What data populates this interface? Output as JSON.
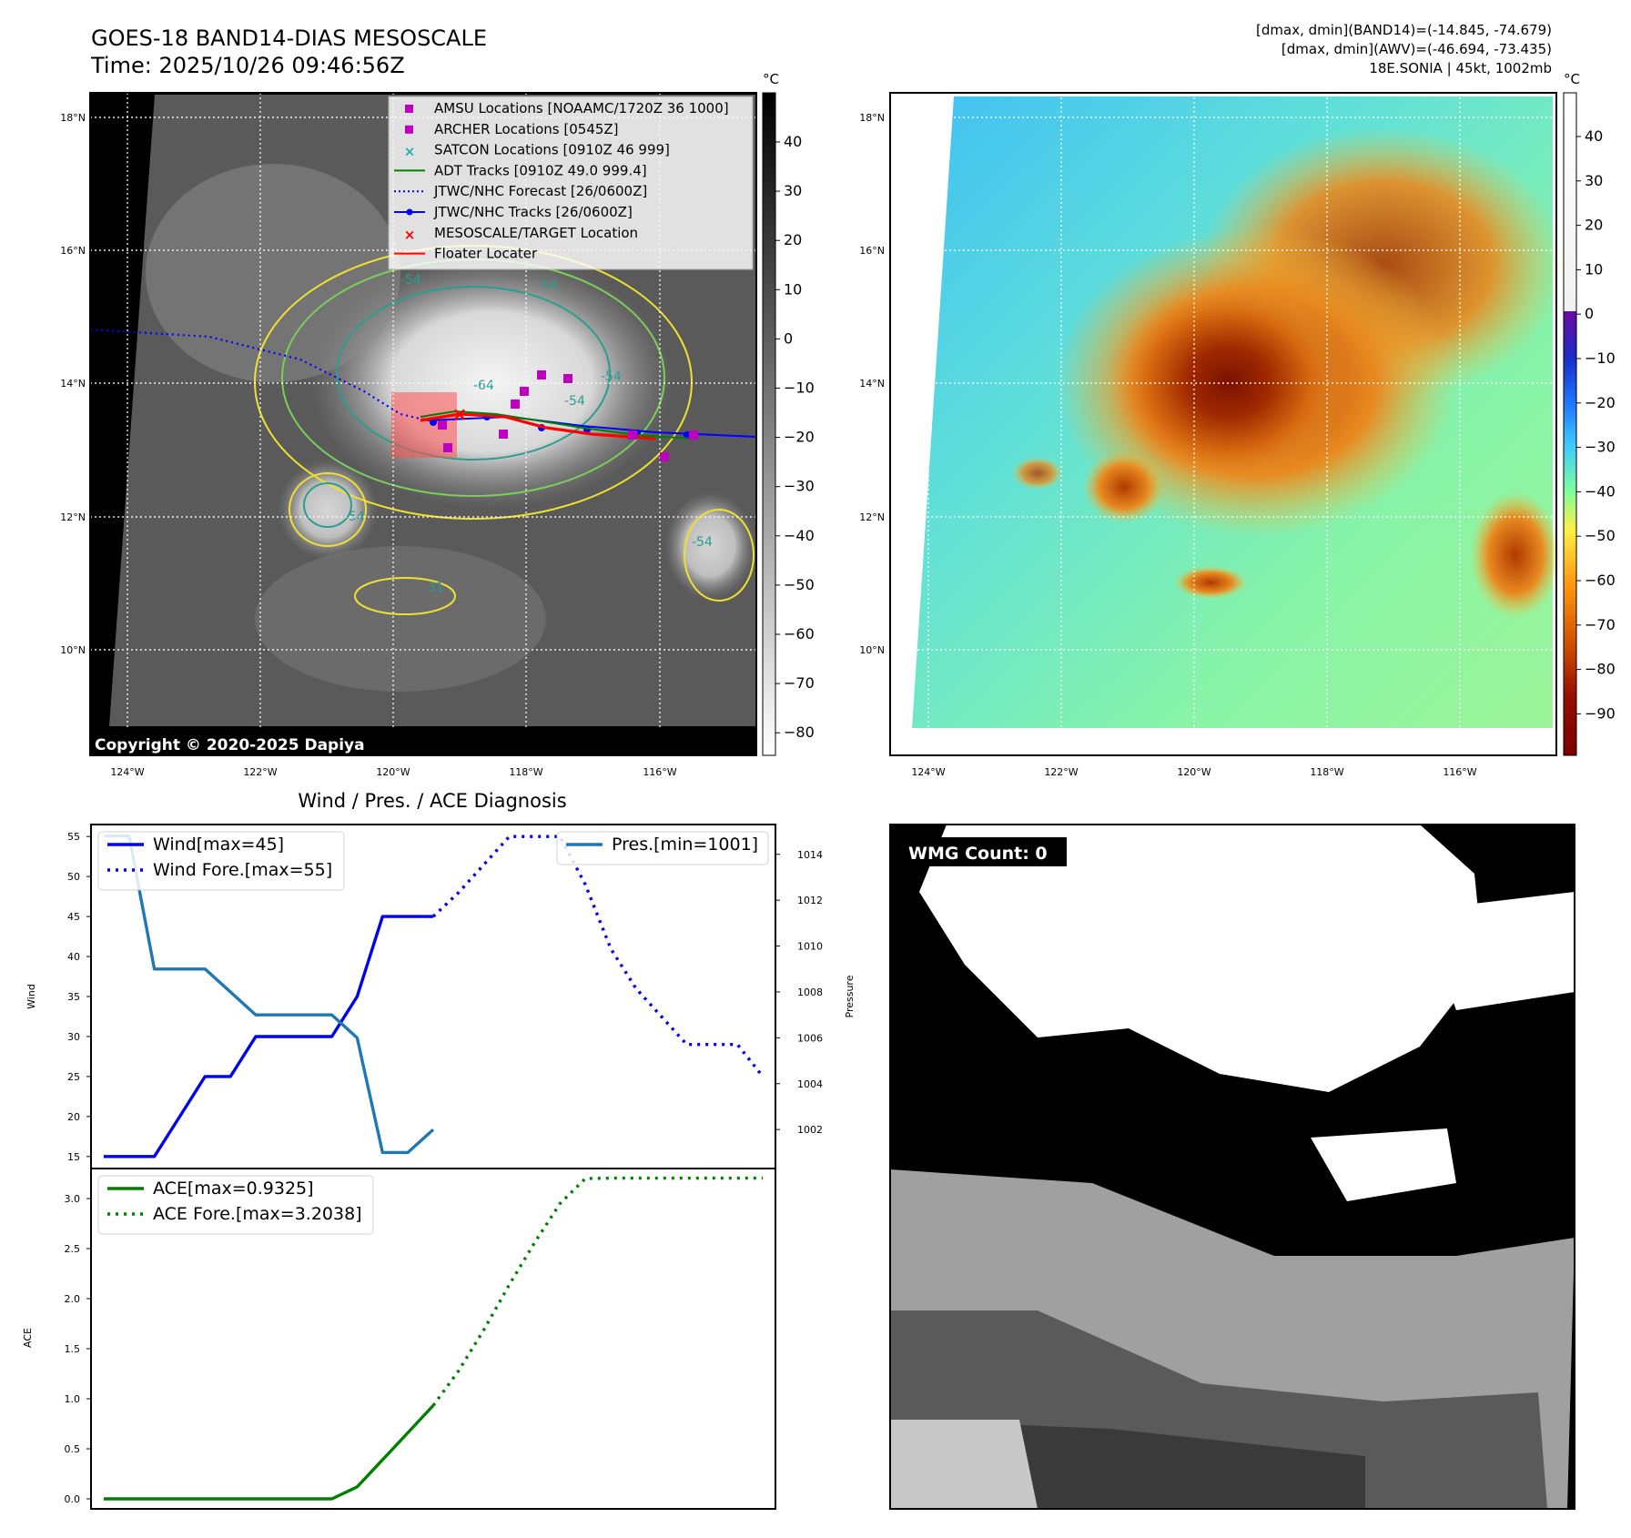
{
  "header": {
    "title_line1": "GOES-18 BAND14-DIAS MESOSCALE",
    "title_line2": "Time: 2025/10/26 09:46:56Z",
    "info_line1": "[dmax, dmin](BAND14)=(-14.845, -74.679)",
    "info_line2": "[dmax, dmin](AWV)=(-46.694, -73.435)",
    "info_line3": "18E.SONIA | 45kt, 1002mb"
  },
  "map_axes": {
    "lat_labels": [
      "18°N",
      "16°N",
      "14°N",
      "12°N",
      "10°N"
    ],
    "lon_labels": [
      "124°W",
      "122°W",
      "120°W",
      "118°W",
      "116°W"
    ]
  },
  "ir_panel": {
    "copyright": "Copyright © 2020-2025 Dapiya",
    "colorbar_unit": "°C",
    "colorbar_ticks": [
      "40",
      "30",
      "20",
      "10",
      "0",
      "−10",
      "−20",
      "−30",
      "−40",
      "−50",
      "−60",
      "−70",
      "−80"
    ],
    "contour_labels": [
      "-54",
      "-54",
      "-54",
      "-64",
      "-54",
      "-54",
      "-54",
      "-31"
    ],
    "legend": [
      {
        "label": "AMSU Locations [NOAAMC/1720Z 36 1000]",
        "marker": "square",
        "color": "#c000c0"
      },
      {
        "label": "ARCHER Locations [0545Z]",
        "marker": "square",
        "color": "#c000c0"
      },
      {
        "label": "SATCON Locations [0910Z 46 999]",
        "marker": "x",
        "color": "#20b0b0"
      },
      {
        "label": "ADT Tracks [0910Z 49.0 999.4]",
        "marker": "line",
        "color": "#008000"
      },
      {
        "label": "JTWC/NHC Forecast [26/0600Z]",
        "marker": "dotted",
        "color": "#0000ff"
      },
      {
        "label": "JTWC/NHC Tracks [26/0600Z]",
        "marker": "line-dot",
        "color": "#0000ff"
      },
      {
        "label": "MESOSCALE/TARGET Location",
        "marker": "x",
        "color": "#ff0000"
      },
      {
        "label": "Floater Locater",
        "marker": "line",
        "color": "#ff0000"
      }
    ]
  },
  "awv_panel": {
    "colorbar_unit": "°C",
    "colorbar_ticks": [
      "40",
      "30",
      "20",
      "10",
      "0",
      "−10",
      "−20",
      "−30",
      "−40",
      "−50",
      "−60",
      "−70",
      "−80",
      "−90"
    ]
  },
  "wmg_panel": {
    "label": "WMG Count: 0"
  },
  "chart_data": [
    {
      "type": "line",
      "title": "Wind / Pres. / ACE Diagnosis",
      "ylabel": "Wind",
      "ylabel_right": "Pressure",
      "ylim": [
        13.5,
        56.5
      ],
      "ylim_right": [
        1000.3,
        1015.3
      ],
      "yticks": [
        15,
        20,
        25,
        30,
        35,
        40,
        45,
        50,
        55
      ],
      "yticks_right": [
        1002,
        1004,
        1006,
        1008,
        1010,
        1012,
        1014
      ],
      "xlim": [
        -0.5,
        26.5
      ],
      "series": [
        {
          "name": "Wind[max=45]",
          "axis": "left",
          "style": "solid",
          "color": "#0000ee",
          "x": [
            0,
            1,
            2,
            3,
            4,
            5,
            6,
            7,
            8,
            9,
            10,
            11,
            12,
            13
          ],
          "values": [
            15,
            15,
            15,
            20,
            25,
            25,
            30,
            30,
            30,
            30,
            35,
            45,
            45,
            45
          ]
        },
        {
          "name": "Wind Fore.[max=55]",
          "axis": "left",
          "style": "dotted",
          "color": "#0000ee",
          "x": [
            13,
            14,
            15,
            16,
            17,
            18,
            19,
            20,
            21,
            22,
            23,
            24,
            25,
            26
          ],
          "values": [
            45,
            48,
            51.5,
            55,
            55,
            55,
            49,
            41,
            36,
            32.5,
            29,
            29,
            29,
            25
          ]
        },
        {
          "name": "Pres.[min=1001]",
          "axis": "right",
          "style": "solid",
          "color": "#1f77b4",
          "x": [
            0,
            1,
            2,
            3,
            4,
            5,
            6,
            7,
            8,
            9,
            10,
            11,
            12,
            13
          ],
          "values": [
            1014.8,
            1014.8,
            1009.0,
            1009.0,
            1009.0,
            1008.0,
            1007.0,
            1007.0,
            1007.0,
            1007.0,
            1006.0,
            1001.0,
            1001.0,
            1002.0
          ]
        }
      ]
    },
    {
      "type": "line",
      "ylabel": "ACE",
      "ylim": [
        -0.1,
        3.3
      ],
      "yticks": [
        0.0,
        0.5,
        1.0,
        1.5,
        2.0,
        2.5,
        3.0
      ],
      "xlim": [
        -0.5,
        26.5
      ],
      "series": [
        {
          "name": "ACE[max=0.9325]",
          "style": "solid",
          "color": "#008000",
          "x": [
            0,
            1,
            2,
            3,
            4,
            5,
            6,
            7,
            8,
            9,
            10,
            11,
            12,
            13
          ],
          "values": [
            0,
            0,
            0,
            0,
            0,
            0,
            0,
            0,
            0,
            0,
            0.12,
            0.39,
            0.66,
            0.9325
          ]
        },
        {
          "name": "ACE Fore.[max=3.2038]",
          "style": "dotted",
          "color": "#008000",
          "x": [
            13,
            14,
            15,
            16,
            17,
            18,
            19,
            20,
            21,
            22,
            23,
            24,
            25,
            26
          ],
          "values": [
            0.9325,
            1.28,
            1.69,
            2.14,
            2.56,
            2.95,
            3.2,
            3.2038,
            3.2038,
            3.2038,
            3.2038,
            3.2038,
            3.2038,
            3.2038
          ]
        }
      ]
    }
  ]
}
